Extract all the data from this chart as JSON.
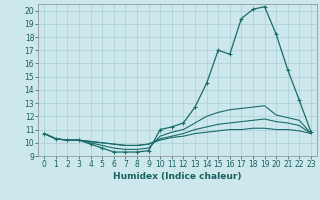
{
  "xlabel": "Humidex (Indice chaleur)",
  "bg_color": "#cce8ec",
  "grid_color": "#aacdd4",
  "line_color": "#1a6b6b",
  "xlim": [
    -0.5,
    23.5
  ],
  "ylim": [
    9,
    20.5
  ],
  "yticks": [
    9,
    10,
    11,
    12,
    13,
    14,
    15,
    16,
    17,
    18,
    19,
    20
  ],
  "xticks": [
    0,
    1,
    2,
    3,
    4,
    5,
    6,
    7,
    8,
    9,
    10,
    11,
    12,
    13,
    14,
    15,
    16,
    17,
    18,
    19,
    20,
    21,
    22,
    23
  ],
  "curve1_x": [
    0,
    1,
    2,
    3,
    4,
    5,
    6,
    7,
    8,
    9,
    10,
    11,
    12,
    13,
    14,
    15,
    16,
    17,
    18,
    19,
    20,
    21,
    22,
    23
  ],
  "curve1_y": [
    10.7,
    10.3,
    10.2,
    10.2,
    9.9,
    9.6,
    9.3,
    9.3,
    9.3,
    9.4,
    11.0,
    11.2,
    11.5,
    12.7,
    14.5,
    17.0,
    16.7,
    19.4,
    20.1,
    20.3,
    18.2,
    15.5,
    13.2,
    10.8
  ],
  "curve2_x": [
    0,
    1,
    2,
    3,
    4,
    5,
    6,
    7,
    8,
    9,
    10,
    11,
    12,
    13,
    14,
    15,
    16,
    17,
    18,
    19,
    20,
    21,
    22,
    23
  ],
  "curve2_y": [
    10.7,
    10.3,
    10.2,
    10.2,
    10.0,
    9.8,
    9.6,
    9.5,
    9.5,
    9.6,
    10.5,
    10.8,
    11.0,
    11.5,
    12.0,
    12.3,
    12.5,
    12.6,
    12.7,
    12.8,
    12.1,
    11.9,
    11.7,
    10.7
  ],
  "curve3_x": [
    0,
    1,
    2,
    3,
    4,
    5,
    6,
    7,
    8,
    9,
    10,
    11,
    12,
    13,
    14,
    15,
    16,
    17,
    18,
    19,
    20,
    21,
    22,
    23
  ],
  "curve3_y": [
    10.7,
    10.3,
    10.2,
    10.2,
    10.1,
    10.0,
    9.9,
    9.8,
    9.8,
    9.9,
    10.3,
    10.5,
    10.7,
    11.0,
    11.2,
    11.4,
    11.5,
    11.6,
    11.7,
    11.8,
    11.6,
    11.5,
    11.3,
    10.7
  ],
  "curve4_x": [
    0,
    1,
    2,
    3,
    4,
    5,
    6,
    7,
    8,
    9,
    10,
    11,
    12,
    13,
    14,
    15,
    16,
    17,
    18,
    19,
    20,
    21,
    22,
    23
  ],
  "curve4_y": [
    10.7,
    10.3,
    10.2,
    10.2,
    10.1,
    10.0,
    9.9,
    9.8,
    9.8,
    9.9,
    10.2,
    10.4,
    10.5,
    10.7,
    10.8,
    10.9,
    11.0,
    11.0,
    11.1,
    11.1,
    11.0,
    11.0,
    10.9,
    10.7
  ],
  "tick_fontsize": 5.5,
  "xlabel_fontsize": 6.5
}
